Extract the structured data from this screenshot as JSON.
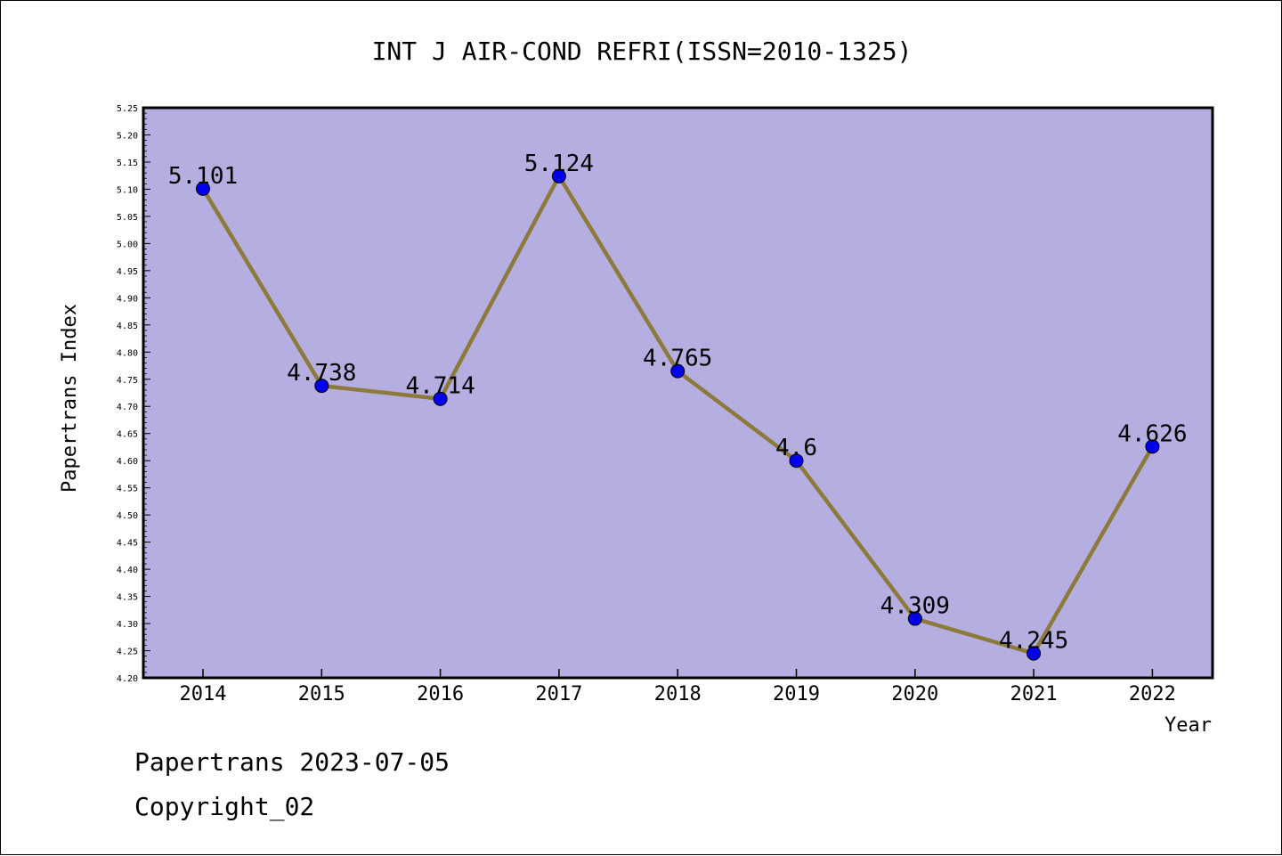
{
  "chart_data": {
    "type": "line",
    "title": "INT J AIR-COND REFRI(ISSN=2010-1325)",
    "xlabel": "Year",
    "ylabel": "Papertrans Index",
    "categories": [
      "2014",
      "2015",
      "2016",
      "2017",
      "2018",
      "2019",
      "2020",
      "2021",
      "2022"
    ],
    "series": [
      {
        "values": [
          5.101,
          4.738,
          4.714,
          5.124,
          4.765,
          4.6,
          4.309,
          4.245,
          4.626
        ]
      }
    ],
    "data_labels": [
      "5.101",
      "4.738",
      "4.714",
      "5.124",
      "4.765",
      "4.6",
      "4.309",
      "4.245",
      "4.626"
    ],
    "ylim": [
      4.2,
      5.25
    ],
    "y_ticks": [
      "4.20",
      "4.25",
      "4.30",
      "4.35",
      "4.40",
      "4.45",
      "4.50",
      "4.55",
      "4.60",
      "4.65",
      "4.70",
      "4.75",
      "4.80",
      "4.85",
      "4.90",
      "4.95",
      "5.00",
      "5.05",
      "5.10",
      "5.15",
      "5.20",
      "5.25"
    ],
    "grid": false,
    "colors": {
      "plot_background": "#b5aee1",
      "line": "#8c7a3a",
      "marker": "#0000ee"
    }
  },
  "footer": {
    "line1": "Papertrans 2023-07-05",
    "line2": "Copyright_02"
  }
}
